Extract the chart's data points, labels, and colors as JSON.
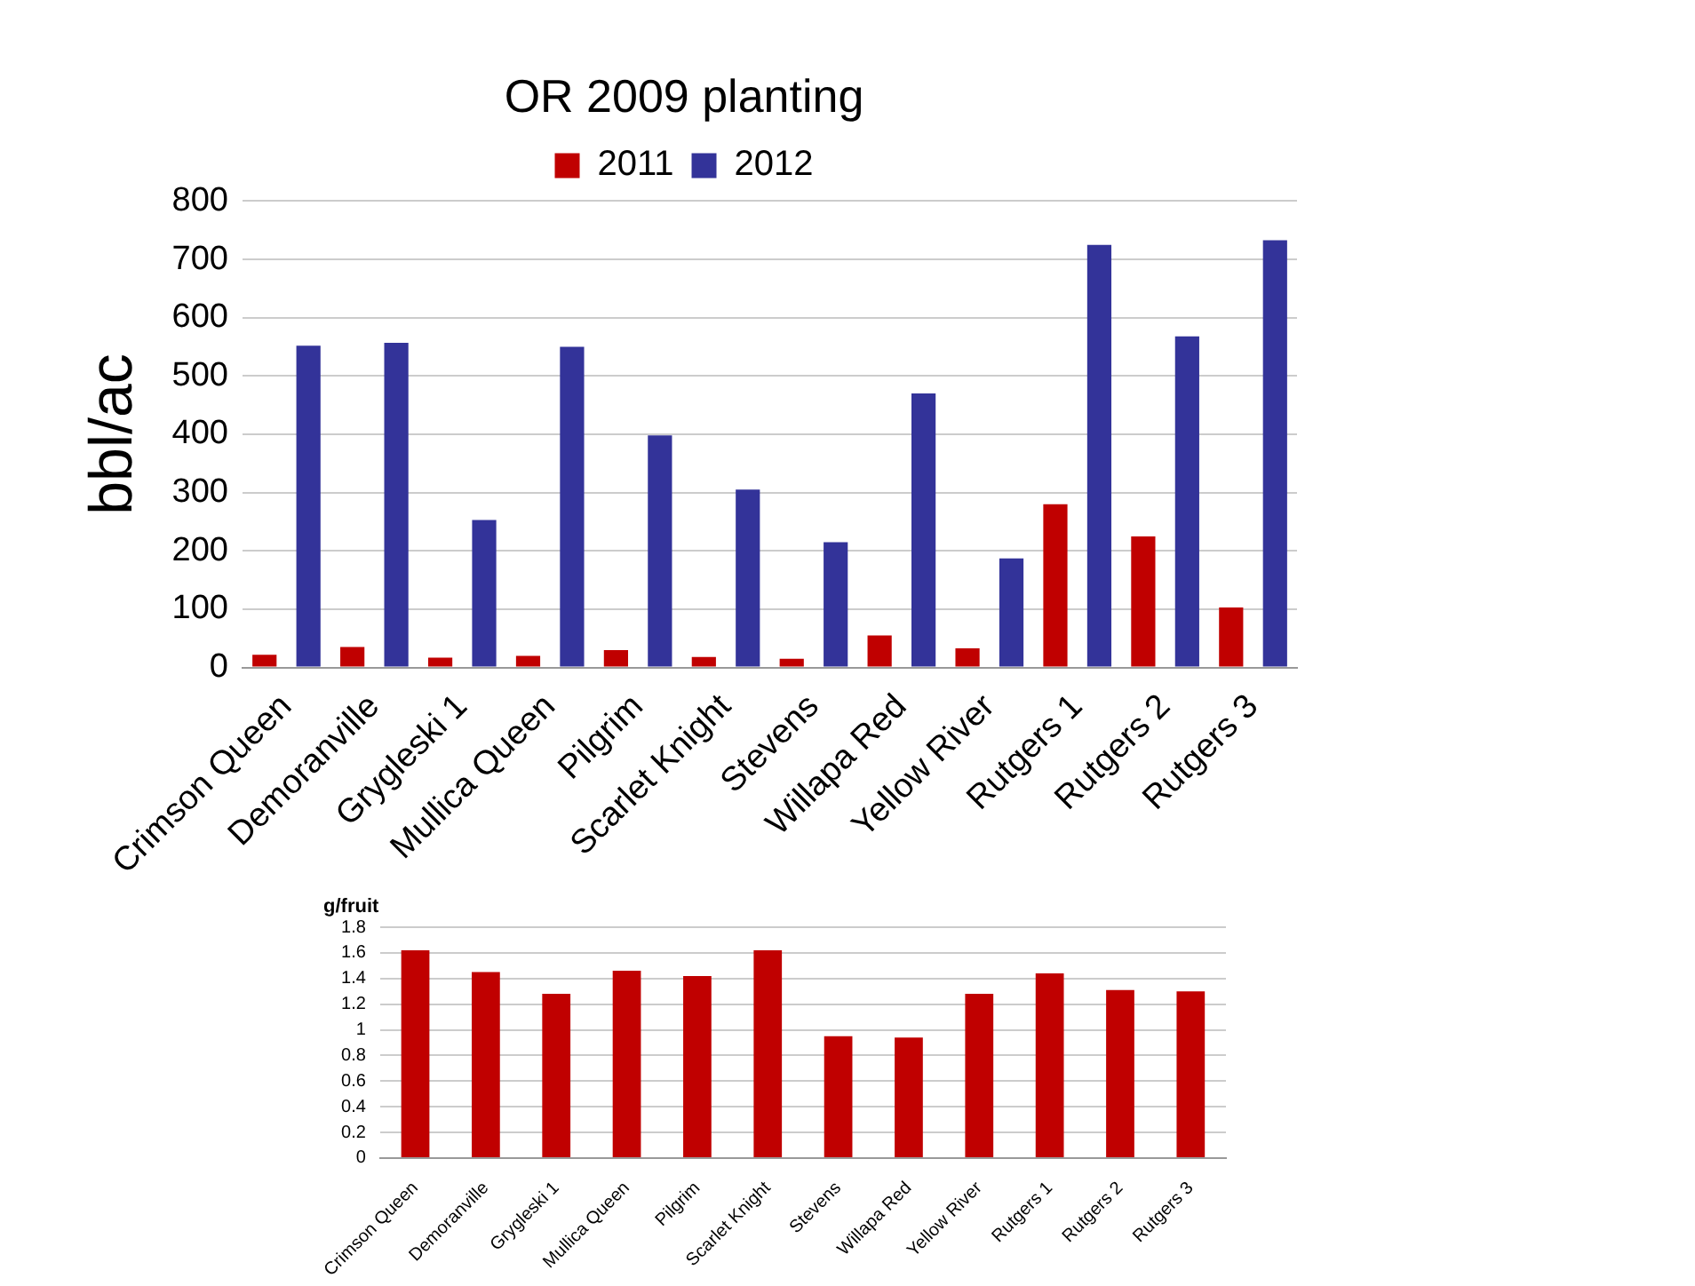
{
  "chart_data": [
    {
      "type": "bar",
      "title": "OR 2009 planting",
      "ylabel": "bbl/ac",
      "categories": [
        "Crimson Queen",
        "Demoranville",
        "Grygleski 1",
        "Mullica Queen",
        "Pilgrim",
        "Scarlet Knight",
        "Stevens",
        "Willapa Red",
        "Yellow River",
        "Rutgers 1",
        "Rutgers 2",
        "Rutgers 3"
      ],
      "series": [
        {
          "name": "2011",
          "color": "#c00000",
          "values": [
            22,
            35,
            17,
            20,
            30,
            18,
            15,
            55,
            33,
            280,
            225,
            103
          ]
        },
        {
          "name": "2012",
          "color": "#333399",
          "values": [
            552,
            557,
            253,
            550,
            398,
            305,
            215,
            470,
            187,
            725,
            568,
            733
          ]
        }
      ],
      "ylim": [
        0,
        800
      ],
      "yticks": [
        0,
        100,
        200,
        300,
        400,
        500,
        600,
        700,
        800
      ],
      "grid": "y",
      "legend": "top"
    },
    {
      "type": "bar",
      "ylabel": "g/fruit",
      "categories": [
        "Crimson Queen",
        "Demoranville",
        "Grygleski 1",
        "Mullica Queen",
        "Pilgrim",
        "Scarlet Knight",
        "Stevens",
        "Willapa Red",
        "Yellow River",
        "Rutgers 1",
        "Rutgers 2",
        "Rutgers 3"
      ],
      "series": [
        {
          "color": "#c00000",
          "values": [
            1.62,
            1.45,
            1.28,
            1.46,
            1.42,
            1.62,
            0.95,
            0.94,
            1.28,
            1.44,
            1.31,
            1.3
          ]
        }
      ],
      "ylim": [
        0,
        1.8
      ],
      "yticks": [
        0,
        0.2,
        0.4,
        0.6,
        0.8,
        1,
        1.2,
        1.4,
        1.6,
        1.8
      ],
      "grid": "y"
    }
  ]
}
